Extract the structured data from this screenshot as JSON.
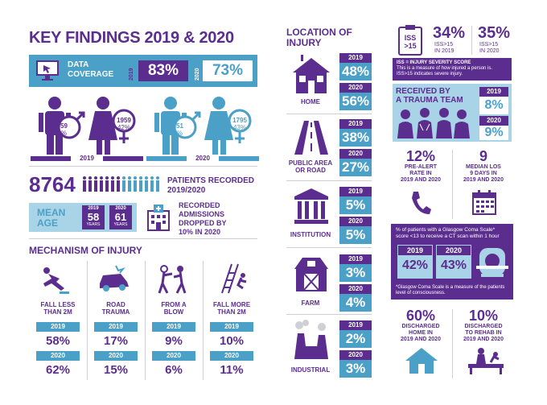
{
  "title": "KEY FINDINGS 2019 & 2020",
  "coverage": {
    "label_line1": "DATA",
    "label_line2": "COVERAGE",
    "year1": "2019",
    "val1": "83%",
    "year2": "2020",
    "val2": "73%"
  },
  "gender": {
    "y2019": {
      "year": "2019",
      "male": "2659",
      "male_pct": "58%",
      "female": "1959",
      "female_pct": "42%"
    },
    "y2020": {
      "year": "2020",
      "male": "2351",
      "male_pct": "57%",
      "female": "1795",
      "female_pct": "43%"
    }
  },
  "patients": {
    "number": "8764",
    "label_line1": "PATIENTS RECORDED",
    "label_line2": "2019/2020"
  },
  "mean_age": {
    "label_line1": "MEAN",
    "label_line2": "AGE",
    "y1": "2019",
    "v1": "58",
    "y2": "2020",
    "v2": "61",
    "unit": "YEARS"
  },
  "admissions": {
    "line1": "RECORDED",
    "line2": "ADMISSIONS",
    "line3": "DROPPED BY",
    "line4": "10% IN 2020"
  },
  "mechanism": {
    "title": "MECHANISM OF INJURY",
    "items": [
      {
        "label1": "FALL LESS",
        "label2": "THAN 2M",
        "y1": "2019",
        "v1": "58%",
        "y2": "2020",
        "v2": "62%"
      },
      {
        "label1": "ROAD",
        "label2": "TRAUMA",
        "y1": "2019",
        "v1": "17%",
        "y2": "2020",
        "v2": "15%"
      },
      {
        "label1": "FROM A",
        "label2": "BLOW",
        "y1": "2019",
        "v1": "9%",
        "y2": "2020",
        "v2": "6%"
      },
      {
        "label1": "FALL MORE",
        "label2": "THAN 2M",
        "y1": "2019",
        "v1": "10%",
        "y2": "2020",
        "v2": "11%"
      }
    ]
  },
  "location": {
    "title1": "LOCATION OF",
    "title2": "INJURY",
    "items": [
      {
        "label1": "HOME",
        "label2": "",
        "y1": "2019",
        "v1": "48%",
        "y2": "2020",
        "v2": "56%"
      },
      {
        "label1": "PUBLIC AREA",
        "label2": "OR ROAD",
        "y1": "2019",
        "v1": "38%",
        "y2": "2020",
        "v2": "27%"
      },
      {
        "label1": "INSTITUTION",
        "label2": "",
        "y1": "2019",
        "v1": "5%",
        "y2": "2020",
        "v2": "5%"
      },
      {
        "label1": "FARM",
        "label2": "",
        "y1": "2019",
        "v1": "3%",
        "y2": "2020",
        "v2": "4%"
      },
      {
        "label1": "INDUSTRIAL",
        "label2": "",
        "y1": "2019",
        "v1": "2%",
        "y2": "2020",
        "v2": "3%"
      }
    ]
  },
  "iss": {
    "icon_line1": "ISS",
    "icon_line2": ">15",
    "v2019": "34%",
    "l2019a": "ISS>15",
    "l2019b": "IN 2019",
    "v2020": "35%",
    "l2020a": "ISS>15",
    "l2020b": "IN 2020",
    "note_title": "ISS = INJURY SEVERITY SCORE",
    "note_line1": "This is a measure of how injured a person is.",
    "note_line2": "ISS>15 indicates severe injury."
  },
  "trauma_team": {
    "line1": "RECEIVED BY",
    "line2": "A TRAUMA TEAM",
    "y1": "2019",
    "v1": "8%",
    "y2": "2020",
    "v2": "9%"
  },
  "prealert": {
    "value": "12%",
    "line1": "PRE-ALERT",
    "line2": "RATE IN",
    "line3": "2019 AND 2020"
  },
  "los": {
    "value": "9",
    "line1": "MEDIAN LOS",
    "line2": "9 DAYS IN",
    "line3": "2019 AND 2020"
  },
  "gcs": {
    "title1": "% of patients with a Glasgow Coma Scale*",
    "title2": "score <13 to receive a CT scan within 1 hour",
    "y1": "2019",
    "v1": "42%",
    "y2": "2020",
    "v2": "43%",
    "note1": "*Glasgow Coma Scale is a measure of the patients",
    "note2": "level of consciousness."
  },
  "home_discharge": {
    "value": "60%",
    "line1": "DISCHARGED",
    "line2": "HOME IN",
    "line3": "2019 AND 2020"
  },
  "rehab": {
    "value": "10%",
    "line1": "DISCHARGED",
    "line2": "TO REHAB IN",
    "line3": "2019 AND 2020"
  },
  "colors": {
    "purple": "#5b2d8e",
    "blue": "#4ba0c8",
    "light_blue": "#a9d3e6"
  },
  "icons": [
    "monitor-icon",
    "male-icon",
    "female-icon",
    "people-row-icon",
    "hospital-icon",
    "fall-icon",
    "car-crash-icon",
    "fight-icon",
    "ladder-fall-icon",
    "house-icon",
    "road-icon",
    "institution-icon",
    "barn-icon",
    "factory-icon",
    "clipboard-icon",
    "team-icon",
    "phone-icon",
    "calendar-icon",
    "ct-scanner-icon",
    "home-icon",
    "rehab-icon"
  ]
}
